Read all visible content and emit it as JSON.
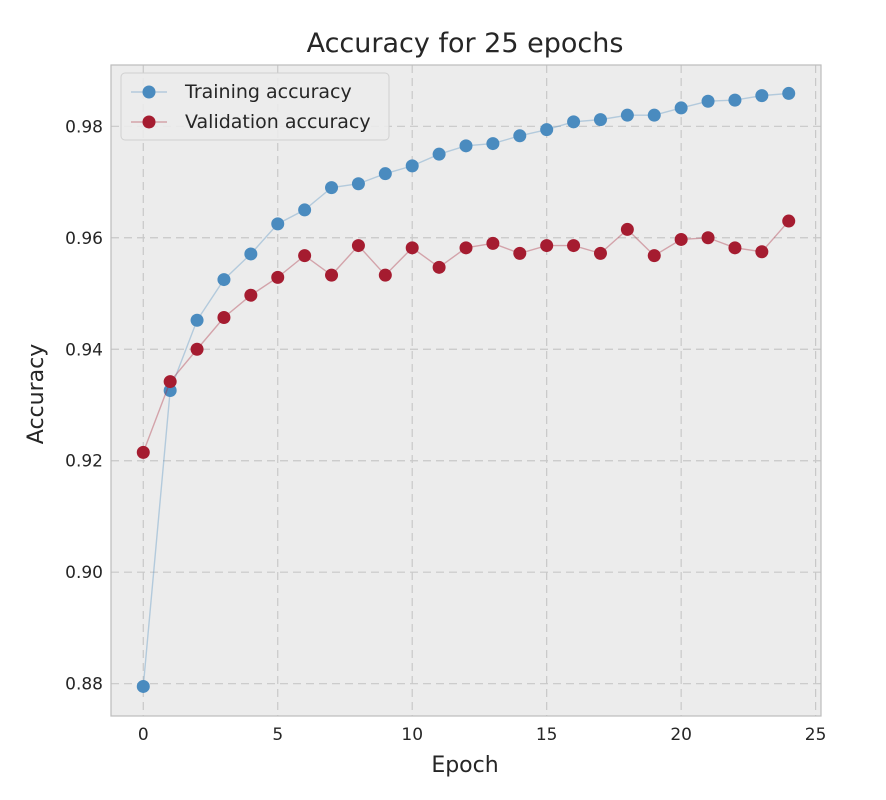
{
  "chart_data": {
    "type": "line",
    "title": "Accuracy for 25 epochs",
    "xlabel": "Epoch",
    "ylabel": "Accuracy",
    "xlim": [
      -1.2,
      25.2
    ],
    "ylim": [
      0.8742,
      0.991
    ],
    "xticks": [
      0,
      5,
      10,
      15,
      20,
      25
    ],
    "xtick_labels": [
      "0",
      "5",
      "10",
      "15",
      "20",
      "25"
    ],
    "yticks": [
      0.88,
      0.9,
      0.92,
      0.94,
      0.96,
      0.98
    ],
    "ytick_labels": [
      "0.88",
      "0.90",
      "0.92",
      "0.94",
      "0.96",
      "0.98"
    ],
    "grid": true,
    "legend_position": "top-left",
    "x": [
      0,
      1,
      2,
      3,
      4,
      5,
      6,
      7,
      8,
      9,
      10,
      11,
      12,
      13,
      14,
      15,
      16,
      17,
      18,
      19,
      20,
      21,
      22,
      23,
      24
    ],
    "series": [
      {
        "name": "Training accuracy",
        "color": "#4a8bbf",
        "values": [
          0.8795,
          0.9326,
          0.9452,
          0.9525,
          0.9571,
          0.9625,
          0.965,
          0.969,
          0.9697,
          0.9715,
          0.9729,
          0.975,
          0.9765,
          0.9769,
          0.9783,
          0.9794,
          0.9808,
          0.9812,
          0.982,
          0.982,
          0.9833,
          0.9845,
          0.9847,
          0.9855,
          0.9859
        ]
      },
      {
        "name": "Validation accuracy",
        "color": "#a51c30",
        "values": [
          0.9215,
          0.9342,
          0.94,
          0.9457,
          0.9497,
          0.9529,
          0.9568,
          0.9533,
          0.9586,
          0.9533,
          0.9582,
          0.9547,
          0.9582,
          0.959,
          0.9572,
          0.9586,
          0.9586,
          0.9572,
          0.9615,
          0.9568,
          0.9597,
          0.96,
          0.9582,
          0.9575,
          0.963
        ]
      }
    ]
  }
}
